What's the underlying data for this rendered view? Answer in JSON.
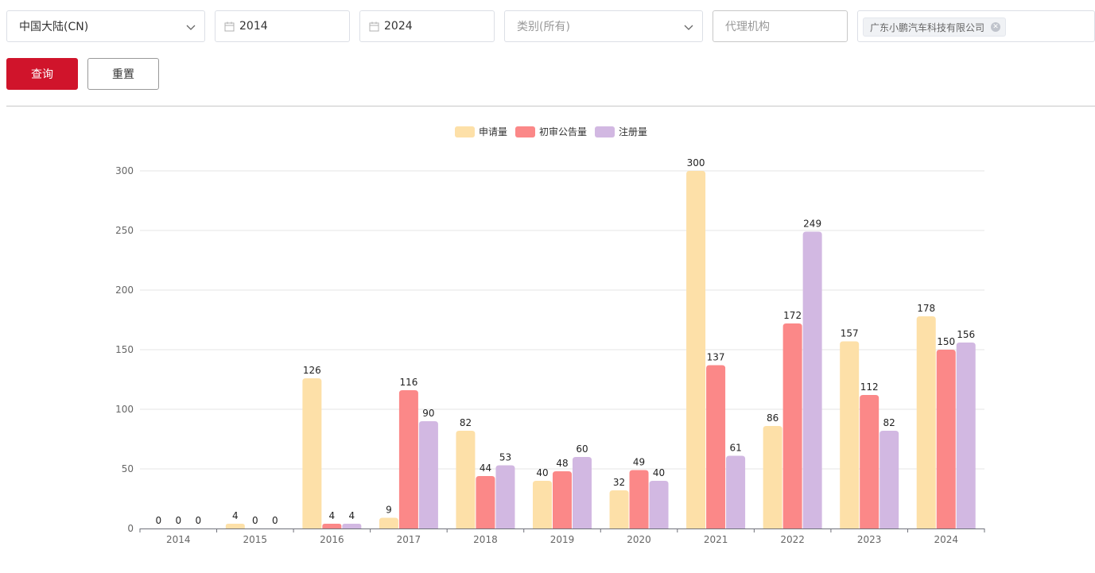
{
  "filters": {
    "region": {
      "value": "中国大陆(CN)"
    },
    "start_year": {
      "value": "2014"
    },
    "end_year": {
      "value": "2024"
    },
    "category": {
      "placeholder": "类别(所有)"
    },
    "agency": {
      "placeholder": "代理机构"
    },
    "applicant_tag": {
      "label": "广东小鹏汽车科技有限公司"
    }
  },
  "buttons": {
    "query": "查询",
    "reset": "重置"
  },
  "chart_data": {
    "type": "bar",
    "categories": [
      "2014",
      "2015",
      "2016",
      "2017",
      "2018",
      "2019",
      "2020",
      "2021",
      "2022",
      "2023",
      "2024"
    ],
    "series": [
      {
        "name": "申请量",
        "color": "#fde0a8",
        "values": [
          0,
          4,
          126,
          9,
          82,
          40,
          32,
          300,
          86,
          157,
          178
        ]
      },
      {
        "name": "初审公告量",
        "color": "#fb8888",
        "values": [
          0,
          0,
          4,
          116,
          44,
          48,
          49,
          137,
          172,
          112,
          150
        ]
      },
      {
        "name": "注册量",
        "color": "#d2b8e2",
        "values": [
          0,
          0,
          4,
          90,
          53,
          60,
          40,
          61,
          249,
          82,
          156
        ]
      }
    ],
    "ylim": [
      0,
      300
    ],
    "yticks": [
      0,
      50,
      100,
      150,
      200,
      250,
      300
    ],
    "grid": true,
    "legend_position": "top-center",
    "data_labels": true
  }
}
